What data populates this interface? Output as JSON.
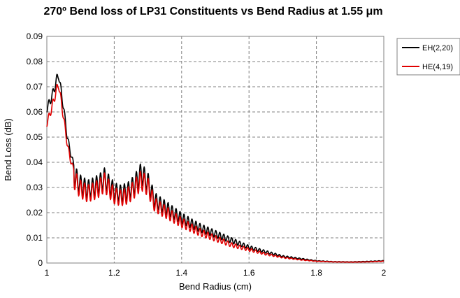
{
  "chart_data": {
    "type": "line",
    "title": "270º Bend loss of LP31 Constituents vs Bend Radius at 1.55 μm",
    "xlabel": "Bend Radius (cm)",
    "ylabel": "Bend Loss (dB)",
    "xlim": [
      1,
      2
    ],
    "ylim": [
      0,
      0.09
    ],
    "xticks": [
      "1",
      "1.2",
      "1.4",
      "1.6",
      "1.8",
      "2"
    ],
    "yticks": [
      "0",
      "0.01",
      "0.02",
      "0.03",
      "0.04",
      "0.05",
      "0.06",
      "0.07",
      "0.08",
      "0.09"
    ],
    "grid": true,
    "legend_position": "right",
    "series": [
      {
        "name": "EH(2,20)",
        "color": "#000000",
        "x": [
          1.0,
          1.01,
          1.02,
          1.03,
          1.035,
          1.04,
          1.05,
          1.06,
          1.07,
          1.08,
          1.09,
          1.1,
          1.12,
          1.14,
          1.16,
          1.17,
          1.18,
          1.2,
          1.22,
          1.24,
          1.26,
          1.28,
          1.3,
          1.32,
          1.35,
          1.4,
          1.45,
          1.5,
          1.55,
          1.6,
          1.65,
          1.7,
          1.75,
          1.8,
          1.85,
          1.9,
          1.95,
          2.0
        ],
        "values": [
          0.063,
          0.066,
          0.07,
          0.075,
          0.077,
          0.072,
          0.063,
          0.052,
          0.045,
          0.04,
          0.037,
          0.035,
          0.033,
          0.034,
          0.036,
          0.038,
          0.036,
          0.032,
          0.031,
          0.032,
          0.035,
          0.04,
          0.036,
          0.028,
          0.025,
          0.02,
          0.016,
          0.013,
          0.01,
          0.007,
          0.005,
          0.003,
          0.002,
          0.001,
          0.0006,
          0.0005,
          0.0007,
          0.001
        ]
      },
      {
        "name": "HE(4,19)",
        "color": "#e00000",
        "x": [
          1.0,
          1.01,
          1.02,
          1.03,
          1.035,
          1.04,
          1.05,
          1.06,
          1.07,
          1.08,
          1.09,
          1.1,
          1.12,
          1.14,
          1.16,
          1.17,
          1.18,
          1.2,
          1.22,
          1.24,
          1.26,
          1.28,
          1.3,
          1.32,
          1.35,
          1.4,
          1.45,
          1.5,
          1.55,
          1.6,
          1.65,
          1.7,
          1.75,
          1.8,
          1.85,
          1.9,
          1.95,
          2.0
        ],
        "values": [
          0.057,
          0.061,
          0.066,
          0.071,
          0.073,
          0.068,
          0.059,
          0.049,
          0.042,
          0.038,
          0.035,
          0.033,
          0.031,
          0.032,
          0.034,
          0.036,
          0.034,
          0.03,
          0.029,
          0.03,
          0.033,
          0.037,
          0.034,
          0.026,
          0.023,
          0.018,
          0.014,
          0.011,
          0.008,
          0.006,
          0.004,
          0.0025,
          0.0015,
          0.0008,
          0.0005,
          0.0004,
          0.0005,
          0.0008
        ]
      }
    ]
  }
}
